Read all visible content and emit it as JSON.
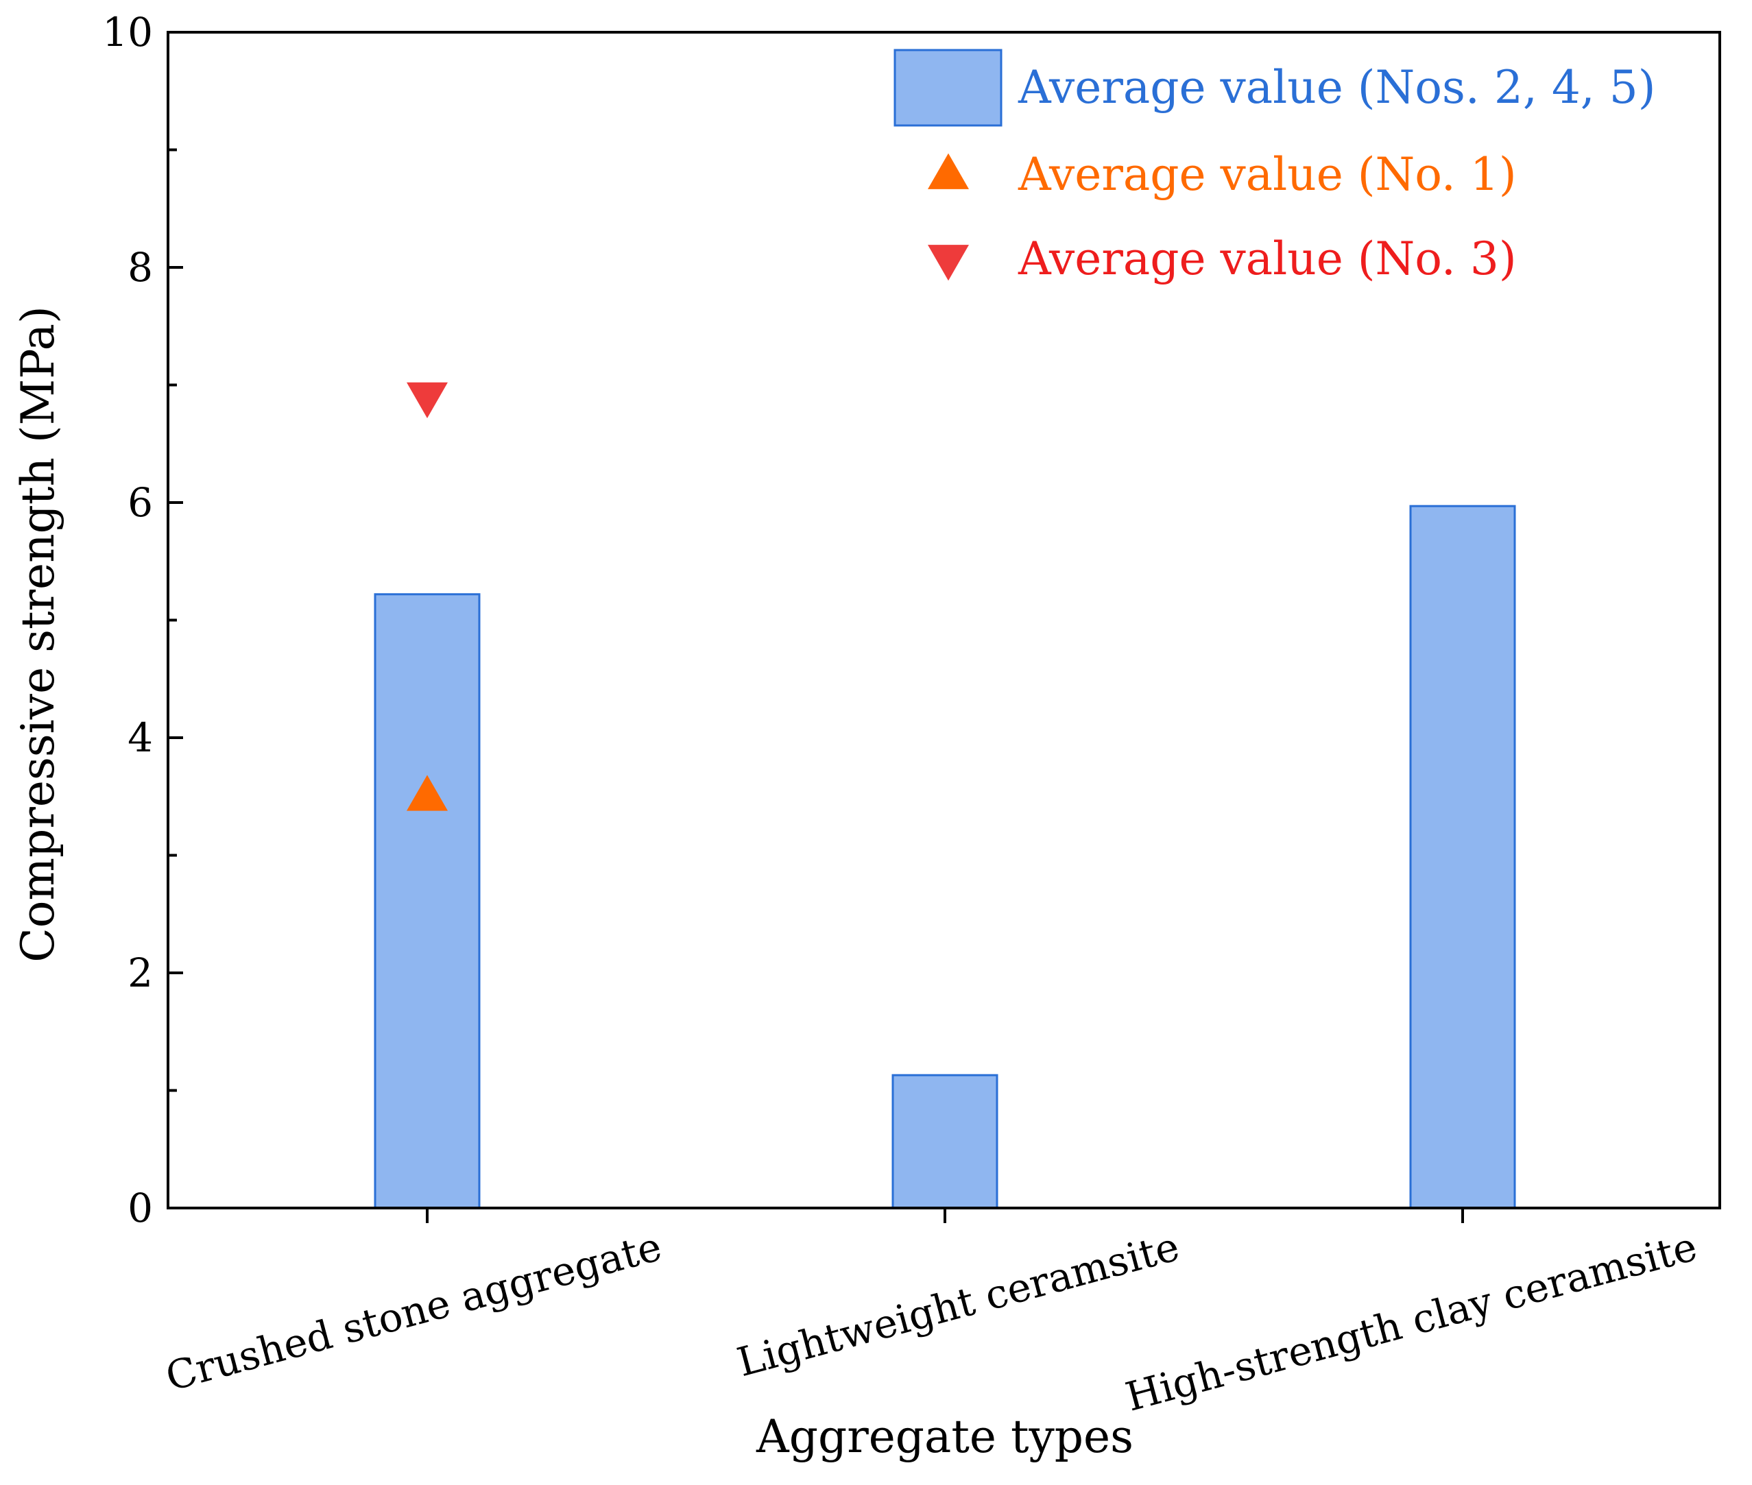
{
  "chart_data": {
    "type": "bar",
    "xlabel": "Aggregate types",
    "ylabel": "Compressive strength (MPa)",
    "ylim": [
      0,
      10
    ],
    "y_ticks": [
      "0",
      "2",
      "4",
      "6",
      "8",
      "10"
    ],
    "y_tick_values": [
      0,
      2,
      4,
      6,
      8,
      10
    ],
    "y_minor_step": 1,
    "categories": [
      "Crushed stone aggregate",
      "Lightweight ceramsite",
      "High-strength clay ceramsite"
    ],
    "series": [
      {
        "name": "Average value (Nos. 2, 4, 5)",
        "kind": "bar",
        "color": "#8fb6f0",
        "edge_color": "#2a6fd6",
        "text_color": "#2a6fd6",
        "values": [
          5.22,
          1.13,
          5.97
        ]
      },
      {
        "name": "Average value (No. 1)",
        "kind": "marker",
        "marker": "triangle-up",
        "color": "#ff6a00",
        "text_color": "#ff6a00",
        "values": [
          3.5,
          null,
          null
        ]
      },
      {
        "name": "Average value (No. 3)",
        "kind": "marker",
        "marker": "triangle-down",
        "color": "#ee3b3b",
        "text_color": "#ee1d1d",
        "values": [
          6.9,
          null,
          null
        ]
      }
    ],
    "legend_position": "top-right",
    "grid": false
  }
}
